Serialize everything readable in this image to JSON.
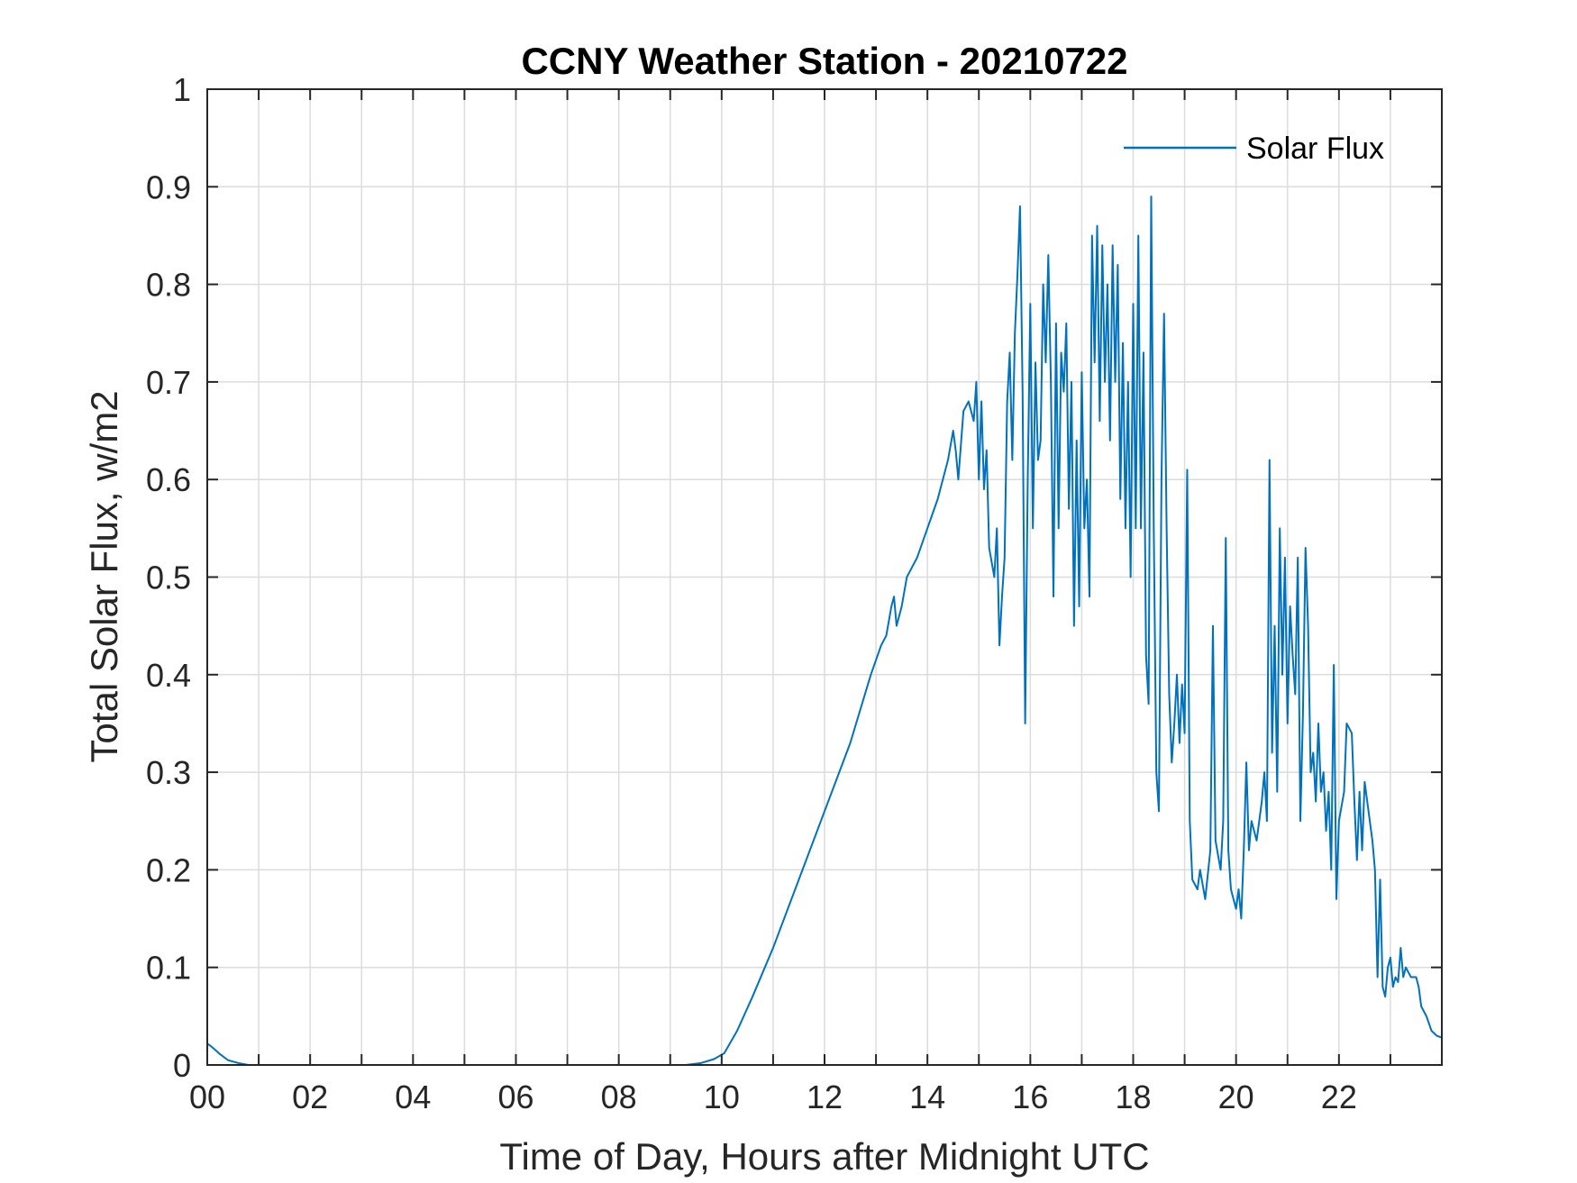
{
  "chart_data": {
    "type": "line",
    "title": "CCNY Weather Station - 20210722",
    "xlabel": "Time of Day, Hours after Midnight UTC",
    "ylabel": "Total Solar Flux, w/m2",
    "xlim": [
      0,
      24
    ],
    "ylim": [
      0,
      1
    ],
    "grid": true,
    "xticks": [
      0,
      1,
      2,
      3,
      4,
      5,
      6,
      7,
      8,
      9,
      10,
      11,
      12,
      13,
      14,
      15,
      16,
      17,
      18,
      19,
      20,
      21,
      22,
      23
    ],
    "xtick_labels": [
      "00",
      "02",
      "04",
      "06",
      "08",
      "10",
      "12",
      "14",
      "16",
      "18",
      "20",
      "22"
    ],
    "xtick_label_values": [
      0,
      2,
      4,
      6,
      8,
      10,
      12,
      14,
      16,
      18,
      20,
      22
    ],
    "yticks": [
      0,
      0.1,
      0.2,
      0.3,
      0.4,
      0.5,
      0.6,
      0.7,
      0.8,
      0.9,
      1
    ],
    "ytick_labels": [
      "0",
      "0.1",
      "0.2",
      "0.3",
      "0.4",
      "0.5",
      "0.6",
      "0.7",
      "0.8",
      "0.9",
      "1"
    ],
    "legend": {
      "position": "top-right",
      "entries": [
        "Solar Flux"
      ]
    },
    "series": [
      {
        "name": "Solar Flux",
        "color": "#0072BD",
        "points": [
          [
            0.0,
            0.022
          ],
          [
            0.1,
            0.018
          ],
          [
            0.25,
            0.011
          ],
          [
            0.4,
            0.005
          ],
          [
            0.6,
            0.002
          ],
          [
            0.8,
            0.0
          ],
          [
            1.0,
            0.0
          ],
          [
            3.0,
            0.0
          ],
          [
            6.0,
            0.0
          ],
          [
            9.0,
            0.0
          ],
          [
            9.3,
            0.0
          ],
          [
            9.6,
            0.002
          ],
          [
            9.85,
            0.006
          ],
          [
            10.05,
            0.012
          ],
          [
            10.3,
            0.035
          ],
          [
            10.6,
            0.07
          ],
          [
            11.0,
            0.12
          ],
          [
            11.5,
            0.19
          ],
          [
            12.0,
            0.26
          ],
          [
            12.5,
            0.33
          ],
          [
            12.9,
            0.4
          ],
          [
            13.1,
            0.43
          ],
          [
            13.2,
            0.44
          ],
          [
            13.3,
            0.47
          ],
          [
            13.35,
            0.48
          ],
          [
            13.4,
            0.45
          ],
          [
            13.5,
            0.47
          ],
          [
            13.6,
            0.5
          ],
          [
            13.8,
            0.52
          ],
          [
            14.0,
            0.55
          ],
          [
            14.2,
            0.58
          ],
          [
            14.4,
            0.62
          ],
          [
            14.5,
            0.65
          ],
          [
            14.55,
            0.63
          ],
          [
            14.6,
            0.6
          ],
          [
            14.7,
            0.67
          ],
          [
            14.8,
            0.68
          ],
          [
            14.9,
            0.66
          ],
          [
            14.95,
            0.7
          ],
          [
            15.0,
            0.6
          ],
          [
            15.05,
            0.68
          ],
          [
            15.1,
            0.59
          ],
          [
            15.15,
            0.63
          ],
          [
            15.2,
            0.53
          ],
          [
            15.3,
            0.5
          ],
          [
            15.35,
            0.55
          ],
          [
            15.4,
            0.43
          ],
          [
            15.45,
            0.48
          ],
          [
            15.5,
            0.52
          ],
          [
            15.55,
            0.68
          ],
          [
            15.6,
            0.73
          ],
          [
            15.65,
            0.62
          ],
          [
            15.7,
            0.75
          ],
          [
            15.75,
            0.81
          ],
          [
            15.8,
            0.88
          ],
          [
            15.85,
            0.69
          ],
          [
            15.9,
            0.35
          ],
          [
            15.95,
            0.6
          ],
          [
            16.0,
            0.78
          ],
          [
            16.05,
            0.55
          ],
          [
            16.1,
            0.72
          ],
          [
            16.15,
            0.62
          ],
          [
            16.2,
            0.64
          ],
          [
            16.25,
            0.8
          ],
          [
            16.3,
            0.72
          ],
          [
            16.35,
            0.83
          ],
          [
            16.4,
            0.7
          ],
          [
            16.45,
            0.48
          ],
          [
            16.5,
            0.76
          ],
          [
            16.55,
            0.55
          ],
          [
            16.6,
            0.73
          ],
          [
            16.65,
            0.69
          ],
          [
            16.7,
            0.76
          ],
          [
            16.75,
            0.57
          ],
          [
            16.8,
            0.7
          ],
          [
            16.85,
            0.45
          ],
          [
            16.9,
            0.64
          ],
          [
            16.95,
            0.47
          ],
          [
            17.0,
            0.71
          ],
          [
            17.05,
            0.55
          ],
          [
            17.1,
            0.6
          ],
          [
            17.15,
            0.48
          ],
          [
            17.2,
            0.85
          ],
          [
            17.25,
            0.72
          ],
          [
            17.3,
            0.86
          ],
          [
            17.35,
            0.66
          ],
          [
            17.4,
            0.84
          ],
          [
            17.45,
            0.7
          ],
          [
            17.5,
            0.8
          ],
          [
            17.55,
            0.64
          ],
          [
            17.6,
            0.84
          ],
          [
            17.65,
            0.7
          ],
          [
            17.7,
            0.82
          ],
          [
            17.75,
            0.58
          ],
          [
            17.8,
            0.74
          ],
          [
            17.85,
            0.55
          ],
          [
            17.9,
            0.7
          ],
          [
            17.95,
            0.5
          ],
          [
            18.0,
            0.78
          ],
          [
            18.05,
            0.55
          ],
          [
            18.1,
            0.85
          ],
          [
            18.15,
            0.55
          ],
          [
            18.2,
            0.73
          ],
          [
            18.25,
            0.42
          ],
          [
            18.3,
            0.37
          ],
          [
            18.35,
            0.89
          ],
          [
            18.4,
            0.55
          ],
          [
            18.45,
            0.3
          ],
          [
            18.5,
            0.26
          ],
          [
            18.55,
            0.6
          ],
          [
            18.6,
            0.77
          ],
          [
            18.65,
            0.55
          ],
          [
            18.7,
            0.38
          ],
          [
            18.75,
            0.31
          ],
          [
            18.8,
            0.35
          ],
          [
            18.85,
            0.4
          ],
          [
            18.9,
            0.33
          ],
          [
            18.95,
            0.39
          ],
          [
            19.0,
            0.34
          ],
          [
            19.05,
            0.61
          ],
          [
            19.1,
            0.25
          ],
          [
            19.15,
            0.19
          ],
          [
            19.25,
            0.18
          ],
          [
            19.3,
            0.2
          ],
          [
            19.4,
            0.17
          ],
          [
            19.5,
            0.22
          ],
          [
            19.55,
            0.45
          ],
          [
            19.6,
            0.23
          ],
          [
            19.7,
            0.2
          ],
          [
            19.75,
            0.25
          ],
          [
            19.8,
            0.54
          ],
          [
            19.85,
            0.22
          ],
          [
            19.9,
            0.18
          ],
          [
            20.0,
            0.16
          ],
          [
            20.05,
            0.18
          ],
          [
            20.1,
            0.15
          ],
          [
            20.15,
            0.22
          ],
          [
            20.2,
            0.31
          ],
          [
            20.25,
            0.22
          ],
          [
            20.3,
            0.25
          ],
          [
            20.4,
            0.23
          ],
          [
            20.5,
            0.27
          ],
          [
            20.55,
            0.3
          ],
          [
            20.6,
            0.25
          ],
          [
            20.65,
            0.62
          ],
          [
            20.7,
            0.32
          ],
          [
            20.75,
            0.45
          ],
          [
            20.8,
            0.28
          ],
          [
            20.85,
            0.55
          ],
          [
            20.9,
            0.4
          ],
          [
            20.95,
            0.52
          ],
          [
            21.0,
            0.35
          ],
          [
            21.05,
            0.47
          ],
          [
            21.1,
            0.42
          ],
          [
            21.15,
            0.38
          ],
          [
            21.2,
            0.52
          ],
          [
            21.25,
            0.25
          ],
          [
            21.3,
            0.36
          ],
          [
            21.35,
            0.53
          ],
          [
            21.4,
            0.45
          ],
          [
            21.45,
            0.3
          ],
          [
            21.5,
            0.32
          ],
          [
            21.55,
            0.27
          ],
          [
            21.6,
            0.35
          ],
          [
            21.65,
            0.28
          ],
          [
            21.7,
            0.3
          ],
          [
            21.75,
            0.24
          ],
          [
            21.8,
            0.28
          ],
          [
            21.85,
            0.2
          ],
          [
            21.9,
            0.41
          ],
          [
            21.95,
            0.17
          ],
          [
            22.0,
            0.25
          ],
          [
            22.1,
            0.28
          ],
          [
            22.15,
            0.35
          ],
          [
            22.25,
            0.34
          ],
          [
            22.3,
            0.27
          ],
          [
            22.35,
            0.21
          ],
          [
            22.4,
            0.28
          ],
          [
            22.45,
            0.22
          ],
          [
            22.5,
            0.29
          ],
          [
            22.55,
            0.27
          ],
          [
            22.6,
            0.25
          ],
          [
            22.65,
            0.23
          ],
          [
            22.7,
            0.2
          ],
          [
            22.75,
            0.09
          ],
          [
            22.8,
            0.19
          ],
          [
            22.85,
            0.08
          ],
          [
            22.9,
            0.07
          ],
          [
            22.95,
            0.1
          ],
          [
            23.0,
            0.11
          ],
          [
            23.05,
            0.08
          ],
          [
            23.1,
            0.09
          ],
          [
            23.15,
            0.085
          ],
          [
            23.2,
            0.12
          ],
          [
            23.25,
            0.09
          ],
          [
            23.3,
            0.1
          ],
          [
            23.4,
            0.09
          ],
          [
            23.5,
            0.09
          ],
          [
            23.55,
            0.08
          ],
          [
            23.6,
            0.06
          ],
          [
            23.7,
            0.05
          ],
          [
            23.8,
            0.035
          ],
          [
            23.9,
            0.03
          ],
          [
            24.0,
            0.028
          ]
        ]
      }
    ]
  }
}
